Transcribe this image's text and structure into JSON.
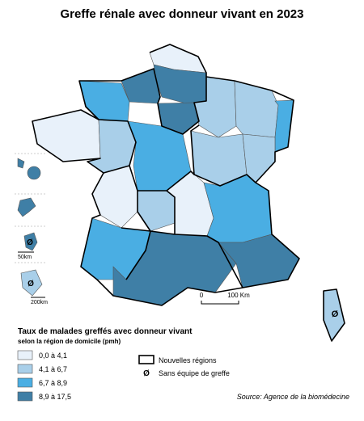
{
  "title": "Greffe rénale avec donneur vivant en 2023",
  "legend": {
    "title": "Taux de malades greffés avec donneur vivant",
    "subtitle": "selon la région de domicile (pmh)",
    "classes": [
      {
        "label": "0,0 à 4,1",
        "color": "#e8f1fa"
      },
      {
        "label": "4,1 à 6,7",
        "color": "#a9cfe9"
      },
      {
        "label": "6,7 à 8,9",
        "color": "#4aaee3"
      },
      {
        "label": "8,9 à 17,5",
        "color": "#3f7fa6"
      }
    ],
    "new_regions": "Nouvelles régions",
    "no_team": {
      "symbol": "Ø",
      "label": "Sans équipe de greffe"
    }
  },
  "scale": {
    "zero": "0",
    "distance": "100 Km"
  },
  "insets": {
    "scale_small": "50km",
    "scale_large": "200km"
  },
  "source": "Source: Agence de la biomédecine"
}
